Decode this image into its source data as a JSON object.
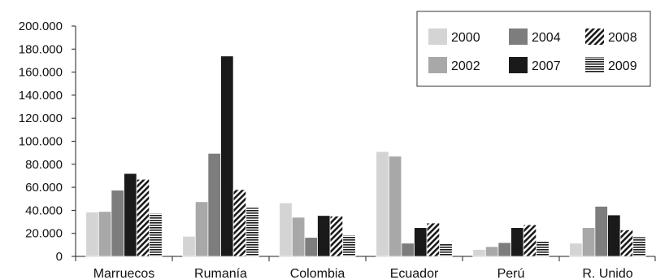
{
  "chart_data": {
    "type": "bar",
    "categories": [
      "Marruecos",
      "Rumanía",
      "Colombia",
      "Ecuador",
      "Perú",
      "R. Unido"
    ],
    "series": [
      {
        "name": "2000",
        "fill": "#d4d4d4",
        "pattern": "solid",
        "values": [
          38500,
          17500,
          46500,
          91000,
          6000,
          11500
        ]
      },
      {
        "name": "2002",
        "fill": "#a8a8a8",
        "pattern": "solid",
        "values": [
          39000,
          47500,
          34000,
          87000,
          8500,
          25000
        ]
      },
      {
        "name": "2004",
        "fill": "#7d7d7d",
        "pattern": "solid",
        "values": [
          57500,
          89500,
          16500,
          11500,
          12000,
          43500
        ]
      },
      {
        "name": "2007",
        "fill": "#1a1a1a",
        "pattern": "solid",
        "values": [
          72000,
          174000,
          35500,
          25000,
          25000,
          36000
        ]
      },
      {
        "name": "2008",
        "fill": "#1a1a1a",
        "pattern": "diagonal",
        "values": [
          67000,
          58000,
          35000,
          29000,
          27500,
          23000
        ]
      },
      {
        "name": "2009",
        "fill": "#1a1a1a",
        "pattern": "horizontal",
        "values": [
          37500,
          42500,
          18500,
          11500,
          13000,
          17000
        ]
      }
    ],
    "ylim": [
      0,
      200000
    ],
    "yticks": [
      0,
      20000,
      40000,
      60000,
      80000,
      100000,
      120000,
      140000,
      160000,
      180000,
      200000
    ],
    "ytick_labels": [
      "0",
      "20.000",
      "40.000",
      "60.000",
      "80.000",
      "100.000",
      "120.000",
      "140.000",
      "160.000",
      "180.000",
      "200.000"
    ],
    "title": "",
    "xlabel": "",
    "ylabel": "",
    "legend_position": "top-right",
    "legend_columns": 3,
    "grid": false
  }
}
